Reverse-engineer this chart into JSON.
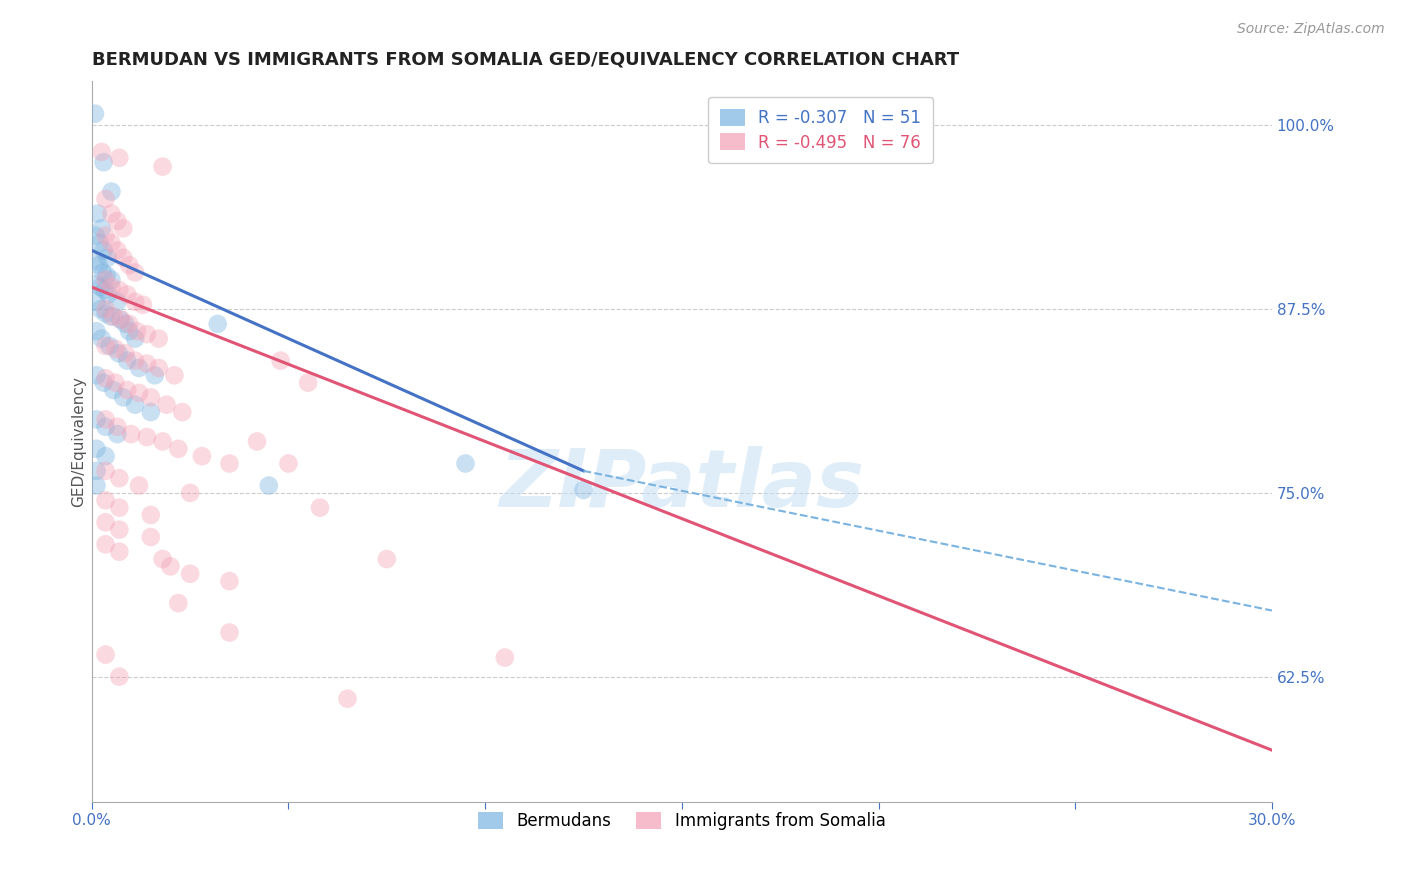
{
  "title": "BERMUDAN VS IMMIGRANTS FROM SOMALIA GED/EQUIVALENCY CORRELATION CHART",
  "source": "Source: ZipAtlas.com",
  "ylabel": "GED/Equivalency",
  "yticks_right": [
    62.5,
    75.0,
    87.5,
    100.0
  ],
  "ytick_labels_right": [
    "62.5%",
    "75.0%",
    "87.5%",
    "100.0%"
  ],
  "xmin": 0.0,
  "xmax": 30.0,
  "ymin": 54.0,
  "ymax": 103.0,
  "bermudan_color": "#7ab3e0",
  "somalia_color": "#f4a0b5",
  "blue_line_color": "#4472c4",
  "pink_line_color": "#e05575",
  "dashed_line_color": "#7ab3e0",
  "blue_scatter": [
    [
      0.08,
      100.8
    ],
    [
      0.3,
      97.5
    ],
    [
      0.5,
      95.5
    ],
    [
      0.15,
      94.0
    ],
    [
      0.25,
      93.0
    ],
    [
      0.1,
      92.5
    ],
    [
      0.2,
      92.0
    ],
    [
      0.3,
      91.5
    ],
    [
      0.4,
      91.0
    ],
    [
      0.12,
      90.8
    ],
    [
      0.18,
      90.5
    ],
    [
      0.28,
      90.0
    ],
    [
      0.38,
      89.8
    ],
    [
      0.5,
      89.5
    ],
    [
      0.12,
      89.2
    ],
    [
      0.22,
      89.0
    ],
    [
      0.32,
      88.8
    ],
    [
      0.42,
      88.5
    ],
    [
      0.65,
      88.0
    ],
    [
      0.12,
      88.0
    ],
    [
      0.22,
      87.5
    ],
    [
      0.35,
      87.2
    ],
    [
      0.48,
      87.0
    ],
    [
      0.72,
      86.8
    ],
    [
      0.85,
      86.5
    ],
    [
      0.95,
      86.0
    ],
    [
      1.1,
      85.5
    ],
    [
      0.12,
      86.0
    ],
    [
      0.25,
      85.5
    ],
    [
      0.45,
      85.0
    ],
    [
      0.68,
      84.5
    ],
    [
      0.9,
      84.0
    ],
    [
      1.2,
      83.5
    ],
    [
      1.6,
      83.0
    ],
    [
      0.12,
      83.0
    ],
    [
      0.3,
      82.5
    ],
    [
      0.55,
      82.0
    ],
    [
      0.8,
      81.5
    ],
    [
      1.1,
      81.0
    ],
    [
      1.5,
      80.5
    ],
    [
      0.12,
      80.0
    ],
    [
      0.35,
      79.5
    ],
    [
      0.65,
      79.0
    ],
    [
      0.12,
      78.0
    ],
    [
      0.35,
      77.5
    ],
    [
      0.12,
      76.5
    ],
    [
      0.12,
      75.5
    ],
    [
      3.2,
      86.5
    ],
    [
      4.5,
      75.5
    ],
    [
      9.5,
      77.0
    ],
    [
      12.5,
      75.2
    ]
  ],
  "somalia_scatter": [
    [
      0.25,
      98.2
    ],
    [
      0.7,
      97.8
    ],
    [
      1.8,
      97.2
    ],
    [
      0.35,
      95.0
    ],
    [
      0.5,
      94.0
    ],
    [
      0.65,
      93.5
    ],
    [
      0.8,
      93.0
    ],
    [
      0.35,
      92.5
    ],
    [
      0.5,
      92.0
    ],
    [
      0.65,
      91.5
    ],
    [
      0.8,
      91.0
    ],
    [
      0.95,
      90.5
    ],
    [
      1.1,
      90.0
    ],
    [
      0.35,
      89.5
    ],
    [
      0.5,
      89.0
    ],
    [
      0.7,
      88.8
    ],
    [
      0.9,
      88.5
    ],
    [
      1.1,
      88.0
    ],
    [
      1.3,
      87.8
    ],
    [
      0.35,
      87.5
    ],
    [
      0.55,
      87.0
    ],
    [
      0.75,
      86.8
    ],
    [
      0.95,
      86.5
    ],
    [
      1.15,
      86.0
    ],
    [
      1.4,
      85.8
    ],
    [
      1.7,
      85.5
    ],
    [
      0.35,
      85.0
    ],
    [
      0.6,
      84.8
    ],
    [
      0.85,
      84.5
    ],
    [
      1.1,
      84.0
    ],
    [
      1.4,
      83.8
    ],
    [
      1.7,
      83.5
    ],
    [
      2.1,
      83.0
    ],
    [
      0.35,
      82.8
    ],
    [
      0.6,
      82.5
    ],
    [
      0.9,
      82.0
    ],
    [
      1.2,
      81.8
    ],
    [
      1.5,
      81.5
    ],
    [
      1.9,
      81.0
    ],
    [
      2.3,
      80.5
    ],
    [
      0.35,
      80.0
    ],
    [
      0.65,
      79.5
    ],
    [
      1.0,
      79.0
    ],
    [
      1.4,
      78.8
    ],
    [
      1.8,
      78.5
    ],
    [
      2.2,
      78.0
    ],
    [
      2.8,
      77.5
    ],
    [
      3.5,
      77.0
    ],
    [
      0.35,
      76.5
    ],
    [
      0.7,
      76.0
    ],
    [
      1.2,
      75.5
    ],
    [
      2.5,
      75.0
    ],
    [
      0.35,
      74.5
    ],
    [
      0.7,
      74.0
    ],
    [
      1.5,
      73.5
    ],
    [
      0.35,
      73.0
    ],
    [
      0.7,
      72.5
    ],
    [
      1.5,
      72.0
    ],
    [
      0.35,
      71.5
    ],
    [
      0.7,
      71.0
    ],
    [
      1.8,
      70.5
    ],
    [
      2.0,
      70.0
    ],
    [
      2.5,
      69.5
    ],
    [
      3.5,
      69.0
    ],
    [
      4.8,
      84.0
    ],
    [
      5.5,
      82.5
    ],
    [
      4.2,
      78.5
    ],
    [
      5.0,
      77.0
    ],
    [
      5.8,
      74.0
    ],
    [
      7.5,
      70.5
    ],
    [
      10.5,
      63.8
    ],
    [
      2.2,
      67.5
    ],
    [
      3.5,
      65.5
    ],
    [
      6.5,
      61.0
    ],
    [
      0.35,
      64.0
    ],
    [
      0.7,
      62.5
    ]
  ],
  "blue_line_x": [
    0.0,
    12.5
  ],
  "blue_line_y": [
    91.5,
    76.5
  ],
  "pink_line_x": [
    0.0,
    30.0
  ],
  "pink_line_y": [
    89.0,
    57.5
  ],
  "dashed_line_x": [
    12.5,
    30.0
  ],
  "dashed_line_y": [
    76.5,
    67.0
  ],
  "grid_color": "#cccccc",
  "watermark_text": "ZIPatlas",
  "background_color": "#ffffff",
  "title_fontsize": 13,
  "axis_label_fontsize": 11,
  "tick_fontsize": 11,
  "legend_fontsize": 12,
  "source_fontsize": 10,
  "marker_size": 180,
  "marker_alpha": 0.4
}
